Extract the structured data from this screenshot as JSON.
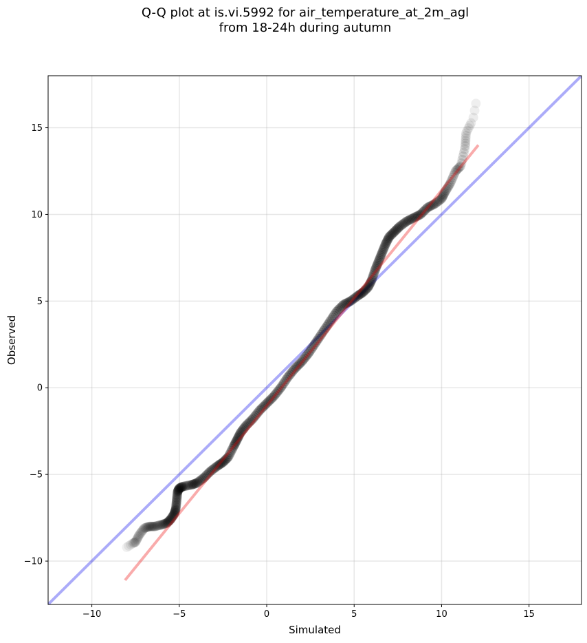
{
  "title": {
    "line1": "Q-Q plot at is.vi.5992 for air_temperature_at_2m_agl",
    "line2": "from 18-24h during autumn"
  },
  "chart_data": {
    "type": "scatter",
    "title": "Q-Q plot at is.vi.5992 for air_temperature_at_2m_agl\nfrom 18-24h during autumn",
    "xlabel": "Simulated",
    "ylabel": "Observed",
    "xlim": [
      -12.5,
      18
    ],
    "ylim": [
      -12.5,
      18
    ],
    "x_ticks": [
      -10,
      -5,
      0,
      5,
      10,
      15
    ],
    "y_ticks": [
      -10,
      -5,
      0,
      5,
      10,
      15
    ],
    "x_tick_labels": [
      "−10",
      "−5",
      "0",
      "5",
      "10",
      "15"
    ],
    "y_tick_labels": [
      "−10",
      "−5",
      "0",
      "5",
      "10",
      "15"
    ],
    "grid": true,
    "quantile_curve": {
      "x": [
        -8.0,
        -7.7,
        -7.5,
        -7.3,
        -7.0,
        -6.7,
        -6.4,
        -6.0,
        -5.7,
        -5.5,
        -5.3,
        -5.2,
        -5.15,
        -5.1,
        -5.0,
        -4.8,
        -4.3,
        -4.0,
        -3.6,
        -3.2,
        -2.8,
        -2.5,
        -2.2,
        -1.9,
        -1.7,
        -1.5,
        -1.2,
        -0.8,
        -0.4,
        0.0,
        0.4,
        0.8,
        1.2,
        1.6,
        2.0,
        2.4,
        2.8,
        3.2,
        3.6,
        4.0,
        4.4,
        4.8,
        5.2,
        5.5,
        5.8,
        6.0,
        6.2,
        6.4,
        6.6,
        6.8,
        7.0,
        7.3,
        7.6,
        8.0,
        8.4,
        8.8,
        9.2,
        9.6,
        10.0,
        10.2,
        10.5,
        10.8,
        11.1,
        11.35,
        11.4,
        11.8,
        12.0
      ],
      "y": [
        -9.2,
        -9.0,
        -8.9,
        -8.5,
        -8.1,
        -8.0,
        -8.0,
        -7.9,
        -7.8,
        -7.6,
        -7.3,
        -7.0,
        -6.5,
        -6.0,
        -5.8,
        -5.7,
        -5.6,
        -5.5,
        -5.2,
        -4.8,
        -4.5,
        -4.3,
        -4.0,
        -3.4,
        -3.0,
        -2.6,
        -2.2,
        -1.8,
        -1.3,
        -0.9,
        -0.5,
        0.0,
        0.6,
        1.1,
        1.5,
        2.0,
        2.6,
        3.2,
        3.8,
        4.4,
        4.8,
        5.0,
        5.3,
        5.5,
        5.8,
        6.2,
        6.8,
        7.3,
        7.8,
        8.3,
        8.7,
        9.0,
        9.3,
        9.6,
        9.8,
        10.0,
        10.4,
        10.6,
        10.9,
        11.3,
        11.8,
        12.5,
        12.8,
        13.9,
        14.7,
        15.5,
        16.6
      ]
    },
    "reference_line": {
      "x": [
        -12.5,
        18
      ],
      "y": [
        -12.5,
        18
      ],
      "color": "#0000ee"
    },
    "fit_line": {
      "x": [
        -8.1,
        12.1
      ],
      "y": [
        -11.1,
        14.0
      ],
      "color": "#ee0000"
    },
    "point_color": "#000000"
  }
}
